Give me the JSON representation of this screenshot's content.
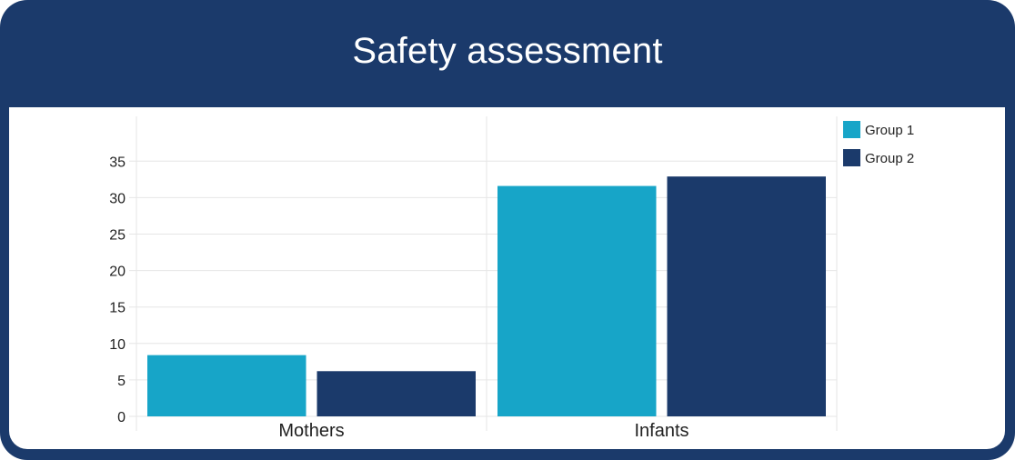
{
  "chart_data": {
    "type": "bar",
    "title": "Safety assessment",
    "xlabel": "",
    "ylabel": "",
    "categories": [
      "Mothers",
      "Infants"
    ],
    "series": [
      {
        "name": "Group 1",
        "values": [
          8.4,
          31.6
        ],
        "color": "#17a5c8"
      },
      {
        "name": "Group 2",
        "values": [
          6.2,
          32.9
        ],
        "color": "#1b3a6b"
      }
    ],
    "ylim": [
      0,
      40
    ],
    "yticks": [
      0,
      5,
      10,
      15,
      20,
      25,
      30,
      35
    ],
    "grid": true,
    "legend": "top-right"
  },
  "colors": {
    "frame": "#1b3a6b",
    "grid": "#e6e6e6"
  }
}
